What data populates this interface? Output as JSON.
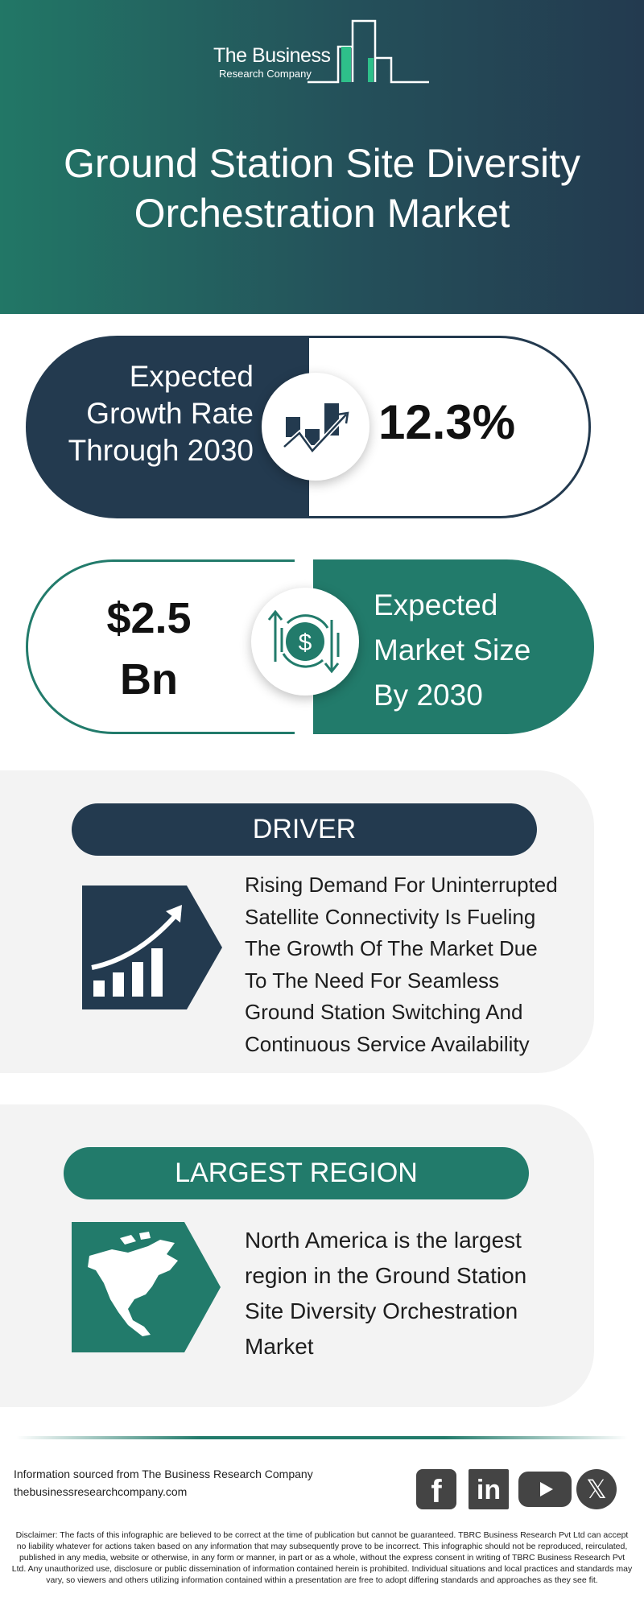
{
  "brand": {
    "line1": "The Business",
    "line2": "Research Company"
  },
  "title": {
    "line1": "Ground Station Site Diversity",
    "line2": "Orchestration Market"
  },
  "growth": {
    "label_lines": [
      "Expected",
      "Growth Rate",
      "Through 2030"
    ],
    "value": "12.3%",
    "icon": "growth-chart-icon"
  },
  "market_size": {
    "value_lines": [
      "$2.5",
      "Bn"
    ],
    "label_lines": [
      "Expected",
      "Market Size",
      "By 2030"
    ],
    "icon": "dollar-exchange-icon"
  },
  "driver": {
    "heading": "DRIVER",
    "icon": "rising-bar-chart-icon",
    "text_lines": [
      "Rising Demand For Uninterrupted",
      "Satellite Connectivity Is Fueling",
      "The Growth Of The Market Due",
      "To The Need For Seamless",
      "Ground Station Switching And",
      "Continuous Service Availability"
    ]
  },
  "region": {
    "heading": "LARGEST REGION",
    "icon": "north-america-map-icon",
    "text_lines": [
      "North America is the largest",
      "region in the Ground Station",
      "Site Diversity Orchestration",
      "Market"
    ]
  },
  "footer": {
    "source": "Information sourced from The Business Research Company",
    "website": "thebusinessresearchcompany.com",
    "social": [
      "facebook-icon",
      "linkedin-icon",
      "youtube-icon",
      "x-icon"
    ],
    "disclaimer": "Disclaimer: The facts of this infographic are believed to be correct at the time of publication but cannot be guaranteed. TBRC Business Research Pvt Ltd can accept no liability whatever for actions taken based on any information that may subsequently prove to be incorrect. This infographic should not be reproduced, reirculated, published in any media, website or otherwise, in any form or manner, in part or as a whole, without the express consent in writing of TBRC Business Research Pvt Ltd. Any unauthorized use, disclosure or public dissemination of information contained herein is prohibited. Individual situations and local practices and standards may vary, so viewers and others utilizing information contained within a presentation are free to adopt differing standards and approaches as they see fit."
  },
  "colors": {
    "navy": "#233a4f",
    "teal": "#227b6b",
    "panel": "#f3f3f3",
    "logo_accent": "#2ec08a"
  }
}
